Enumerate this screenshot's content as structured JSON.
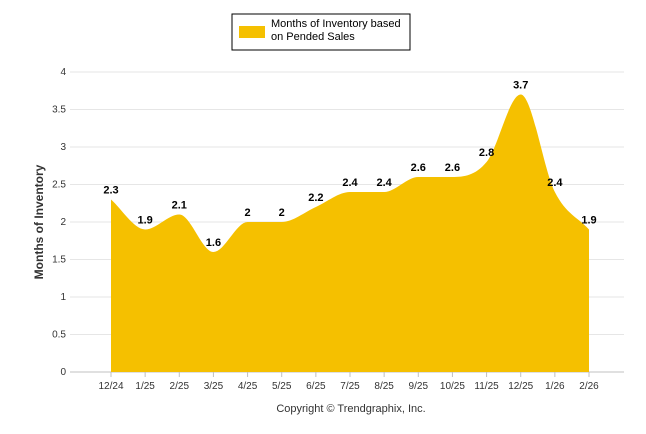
{
  "chart_data": {
    "type": "area",
    "title": "",
    "series": [
      {
        "name": "Months of Inventory based on Pended Sales",
        "color": "#F5C000",
        "values": [
          2.3,
          1.9,
          2.1,
          1.6,
          2,
          2,
          2.2,
          2.4,
          2.4,
          2.6,
          2.6,
          2.8,
          3.7,
          2.4,
          1.9
        ]
      }
    ],
    "categories": [
      "12/24",
      "1/25",
      "2/25",
      "3/25",
      "4/25",
      "5/25",
      "6/25",
      "7/25",
      "8/25",
      "9/25",
      "10/25",
      "11/25",
      "12/25",
      "1/26",
      "2/26"
    ],
    "data_labels": [
      "2.3",
      "1.9",
      "2.1",
      "1.6",
      "2",
      "2",
      "2.2",
      "2.4",
      "2.4",
      "2.6",
      "2.6",
      "2.8",
      "3.7",
      "2.4",
      "1.9"
    ],
    "ylabel": "Months of Inventory",
    "xlabel": "",
    "ylim": [
      0,
      4
    ],
    "yticks": [
      "0",
      "0.5",
      "1",
      "1.5",
      "2",
      "2.5",
      "3",
      "3.5",
      "4"
    ],
    "legend": {
      "position": "top",
      "line1": "Months of Inventory based",
      "line2": "on Pended Sales"
    },
    "grid": true,
    "credit": "Copyright © Trendgraphix, Inc."
  }
}
